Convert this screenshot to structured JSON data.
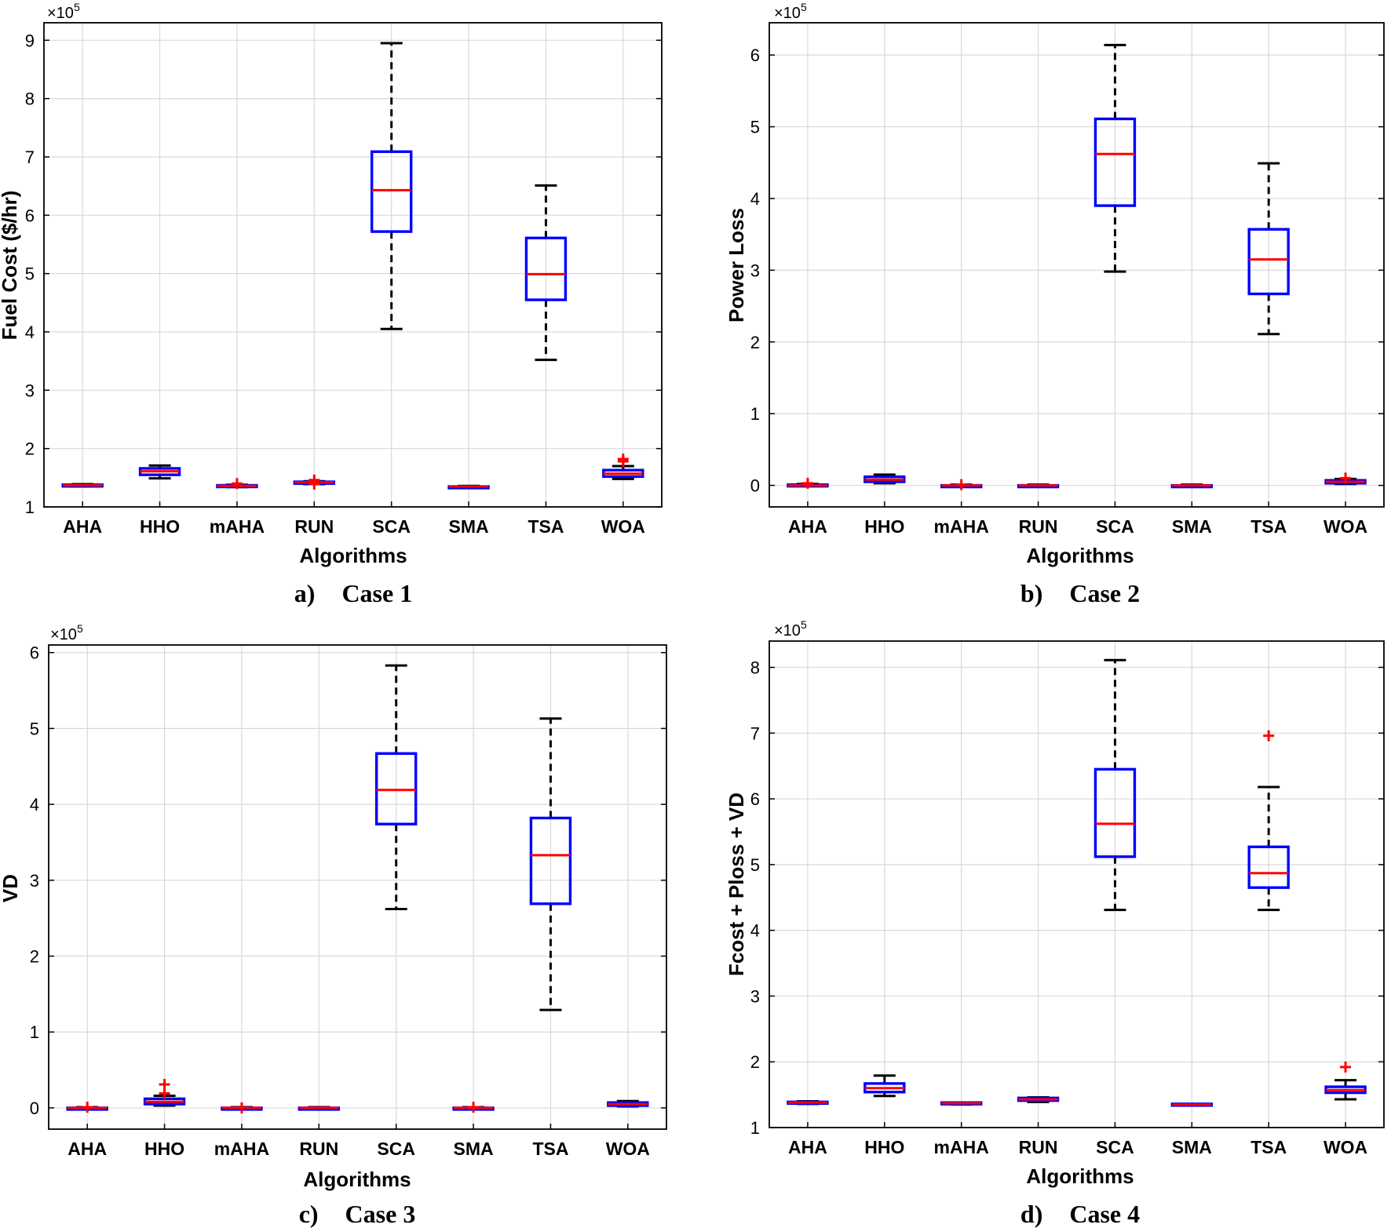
{
  "figure_title": "",
  "chart_data": [
    {
      "type": "box",
      "panel": "a",
      "caption_label": "a)",
      "caption_title": "Case 1",
      "title": "",
      "xlabel": "Algorithms",
      "ylabel": "Fuel Cost ($/hr)",
      "y_multiplier_base": "×10",
      "y_multiplier_exp": "5",
      "ylim": [
        1,
        9.3
      ],
      "yticks": [
        1,
        2,
        3,
        4,
        5,
        6,
        7,
        8,
        9
      ],
      "ytick_labels": [
        "1",
        "2",
        "3",
        "4",
        "5",
        "6",
        "7",
        "8",
        "9"
      ],
      "categories": [
        "AHA",
        "HHO",
        "mAHA",
        "RUN",
        "SCA",
        "SMA",
        "TSA",
        "WOA"
      ],
      "boxes": [
        {
          "min": 1.35,
          "q1": 1.36,
          "median": 1.37,
          "q3": 1.38,
          "max": 1.39,
          "outliers": []
        },
        {
          "min": 1.49,
          "q1": 1.55,
          "median": 1.61,
          "q3": 1.66,
          "max": 1.71,
          "outliers": []
        },
        {
          "min": 1.34,
          "q1": 1.35,
          "median": 1.36,
          "q3": 1.37,
          "max": 1.38,
          "outliers": [
            1.4
          ]
        },
        {
          "min": 1.39,
          "q1": 1.4,
          "median": 1.42,
          "q3": 1.43,
          "max": 1.44,
          "outliers": [
            1.46,
            1.39
          ]
        },
        {
          "min": 4.05,
          "q1": 5.72,
          "median": 6.43,
          "q3": 7.09,
          "max": 8.95,
          "outliers": []
        },
        {
          "min": 1.33,
          "q1": 1.34,
          "median": 1.35,
          "q3": 1.35,
          "max": 1.36,
          "outliers": []
        },
        {
          "min": 3.52,
          "q1": 4.55,
          "median": 4.99,
          "q3": 5.61,
          "max": 6.51,
          "outliers": []
        },
        {
          "min": 1.48,
          "q1": 1.52,
          "median": 1.57,
          "q3": 1.63,
          "max": 1.7,
          "outliers": [
            1.78,
            1.82
          ]
        }
      ]
    },
    {
      "type": "box",
      "panel": "b",
      "caption_label": "b)",
      "caption_title": "Case 2",
      "title": "",
      "xlabel": "Algorithms",
      "ylabel": "Power Loss",
      "y_multiplier_base": "×10",
      "y_multiplier_exp": "5",
      "ylim": [
        -0.3,
        6.45
      ],
      "yticks": [
        0,
        1,
        2,
        3,
        4,
        5,
        6
      ],
      "ytick_labels": [
        "0",
        "1",
        "2",
        "3",
        "4",
        "5",
        "6"
      ],
      "categories": [
        "AHA",
        "HHO",
        "mAHA",
        "RUN",
        "SCA",
        "SMA",
        "TSA",
        "WOA"
      ],
      "boxes": [
        {
          "min": -0.01,
          "q1": -0.01,
          "median": 0.0,
          "q3": 0.01,
          "max": 0.02,
          "outliers": [
            0.03
          ]
        },
        {
          "min": 0.03,
          "q1": 0.05,
          "median": 0.08,
          "q3": 0.12,
          "max": 0.15,
          "outliers": []
        },
        {
          "min": -0.02,
          "q1": -0.01,
          "median": 0.0,
          "q3": 0.0,
          "max": 0.01,
          "outliers": [
            0.01
          ]
        },
        {
          "min": -0.01,
          "q1": -0.01,
          "median": 0.0,
          "q3": 0.0,
          "max": 0.01,
          "outliers": []
        },
        {
          "min": 2.98,
          "q1": 3.9,
          "median": 4.62,
          "q3": 5.11,
          "max": 6.14,
          "outliers": []
        },
        {
          "min": -0.01,
          "q1": -0.01,
          "median": 0.0,
          "q3": 0.0,
          "max": 0.01,
          "outliers": []
        },
        {
          "min": 2.11,
          "q1": 2.67,
          "median": 3.15,
          "q3": 3.57,
          "max": 4.49,
          "outliers": []
        },
        {
          "min": 0.02,
          "q1": 0.03,
          "median": 0.05,
          "q3": 0.07,
          "max": 0.09,
          "outliers": [
            0.1
          ]
        }
      ]
    },
    {
      "type": "box",
      "panel": "c",
      "caption_label": "c)",
      "caption_title": "Case 3",
      "title": "",
      "xlabel": "Algorithms",
      "ylabel": "VD",
      "y_multiplier_base": "×10",
      "y_multiplier_exp": "5",
      "ylim": [
        -0.28,
        6.1
      ],
      "yticks": [
        0,
        1,
        2,
        3,
        4,
        5,
        6
      ],
      "ytick_labels": [
        "0",
        "1",
        "2",
        "3",
        "4",
        "5",
        "6"
      ],
      "categories": [
        "AHA",
        "HHO",
        "mAHA",
        "RUN",
        "SCA",
        "SMA",
        "TSA",
        "WOA"
      ],
      "boxes": [
        {
          "min": -0.01,
          "q1": -0.01,
          "median": 0.0,
          "q3": 0.0,
          "max": 0.01,
          "outliers": [
            0.01
          ]
        },
        {
          "min": 0.03,
          "q1": 0.05,
          "median": 0.08,
          "q3": 0.12,
          "max": 0.16,
          "outliers": [
            0.19,
            0.31
          ]
        },
        {
          "min": -0.01,
          "q1": -0.01,
          "median": 0.0,
          "q3": 0.0,
          "max": 0.01,
          "outliers": [
            0.0
          ]
        },
        {
          "min": -0.01,
          "q1": 0.0,
          "median": 0.0,
          "q3": 0.0,
          "max": 0.01,
          "outliers": []
        },
        {
          "min": 2.62,
          "q1": 3.74,
          "median": 4.19,
          "q3": 4.67,
          "max": 5.83,
          "outliers": []
        },
        {
          "min": -0.01,
          "q1": -0.01,
          "median": 0.0,
          "q3": 0.0,
          "max": 0.01,
          "outliers": [
            0.01
          ]
        },
        {
          "min": 1.29,
          "q1": 2.69,
          "median": 3.33,
          "q3": 3.82,
          "max": 5.13,
          "outliers": []
        },
        {
          "min": 0.02,
          "q1": 0.03,
          "median": 0.05,
          "q3": 0.07,
          "max": 0.09,
          "outliers": []
        }
      ]
    },
    {
      "type": "box",
      "panel": "d",
      "caption_label": "d)",
      "caption_title": "Case 4",
      "title": "",
      "xlabel": "Algorithms",
      "ylabel": "Fcost + Ploss + VD",
      "y_multiplier_base": "×10",
      "y_multiplier_exp": "5",
      "ylim": [
        1,
        8.4
      ],
      "yticks": [
        1,
        2,
        3,
        4,
        5,
        6,
        7,
        8
      ],
      "ytick_labels": [
        "1",
        "2",
        "3",
        "4",
        "5",
        "6",
        "7",
        "8"
      ],
      "categories": [
        "AHA",
        "HHO",
        "mAHA",
        "RUN",
        "SCA",
        "SMA",
        "TSA",
        "WOA"
      ],
      "boxes": [
        {
          "min": 1.36,
          "q1": 1.37,
          "median": 1.38,
          "q3": 1.39,
          "max": 1.4,
          "outliers": []
        },
        {
          "min": 1.48,
          "q1": 1.54,
          "median": 1.6,
          "q3": 1.67,
          "max": 1.79,
          "outliers": []
        },
        {
          "min": 1.35,
          "q1": 1.36,
          "median": 1.37,
          "q3": 1.38,
          "max": 1.38,
          "outliers": []
        },
        {
          "min": 1.39,
          "q1": 1.41,
          "median": 1.43,
          "q3": 1.45,
          "max": 1.46,
          "outliers": []
        },
        {
          "min": 4.31,
          "q1": 5.12,
          "median": 5.62,
          "q3": 6.45,
          "max": 8.11,
          "outliers": []
        },
        {
          "min": 1.34,
          "q1": 1.35,
          "median": 1.35,
          "q3": 1.36,
          "max": 1.36,
          "outliers": []
        },
        {
          "min": 4.31,
          "q1": 4.65,
          "median": 4.87,
          "q3": 5.27,
          "max": 6.18,
          "outliers": [
            6.96
          ]
        },
        {
          "min": 1.43,
          "q1": 1.53,
          "median": 1.57,
          "q3": 1.62,
          "max": 1.72,
          "outliers": [
            1.92
          ]
        }
      ]
    }
  ]
}
